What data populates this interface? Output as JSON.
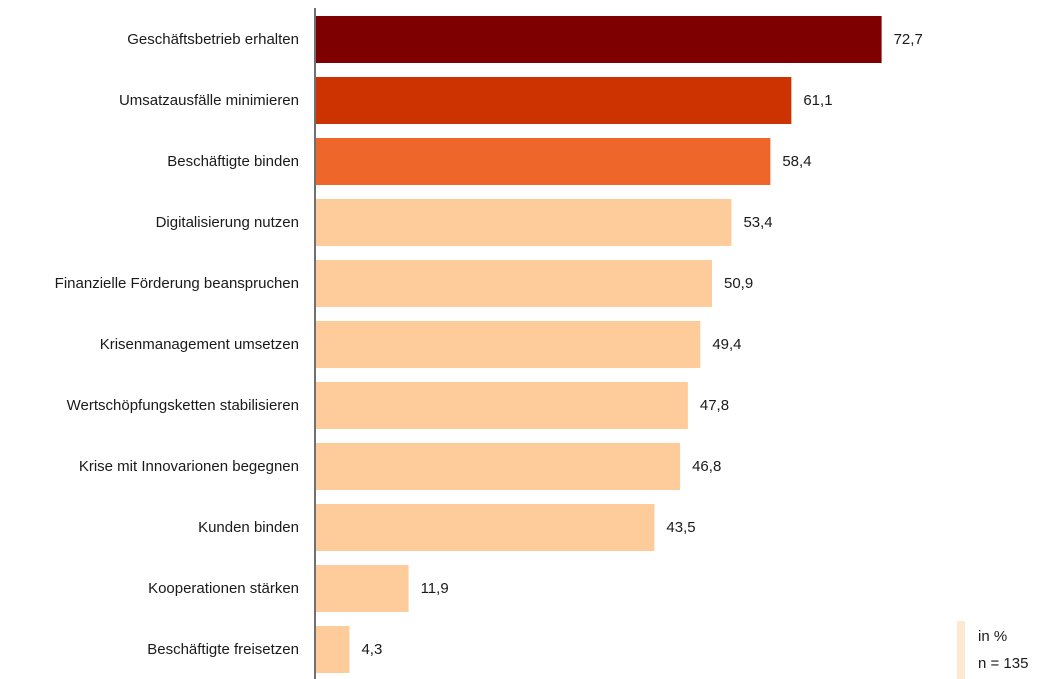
{
  "chart_data": {
    "type": "bar",
    "orientation": "horizontal",
    "categories": [
      "Geschäftsbetrieb erhalten",
      "Umsatzausfälle minimieren",
      "Beschäftigte binden",
      "Digitalisierung nutzen",
      "Finanzielle Förderung beanspruchen",
      "Krisenmanagement umsetzen",
      "Wertschöpfungsketten stabilisieren",
      "Krise mit Innovarionen begegnen",
      "Kunden binden",
      "Kooperationen stärken",
      "Beschäftigte freisetzen"
    ],
    "values": [
      72.7,
      61.1,
      58.4,
      53.4,
      50.9,
      49.4,
      47.8,
      46.8,
      43.5,
      11.9,
      4.3
    ],
    "value_labels": [
      "72,7",
      "61,1",
      "58,4",
      "53,4",
      "50,9",
      "49,4",
      "47,8",
      "46,8",
      "43,5",
      "11,9",
      "4,3"
    ],
    "bar_colors": [
      "#7f0000",
      "#cc3300",
      "#ee6629",
      "#fecc9a",
      "#fecc9a",
      "#fecc9a",
      "#fecc9a",
      "#fecc9a",
      "#fecc9a",
      "#fecc9a",
      "#fecc9a"
    ],
    "xlim": [
      0,
      100
    ],
    "grid": false
  },
  "note": {
    "unit": "in %",
    "sample": "n = 135"
  }
}
